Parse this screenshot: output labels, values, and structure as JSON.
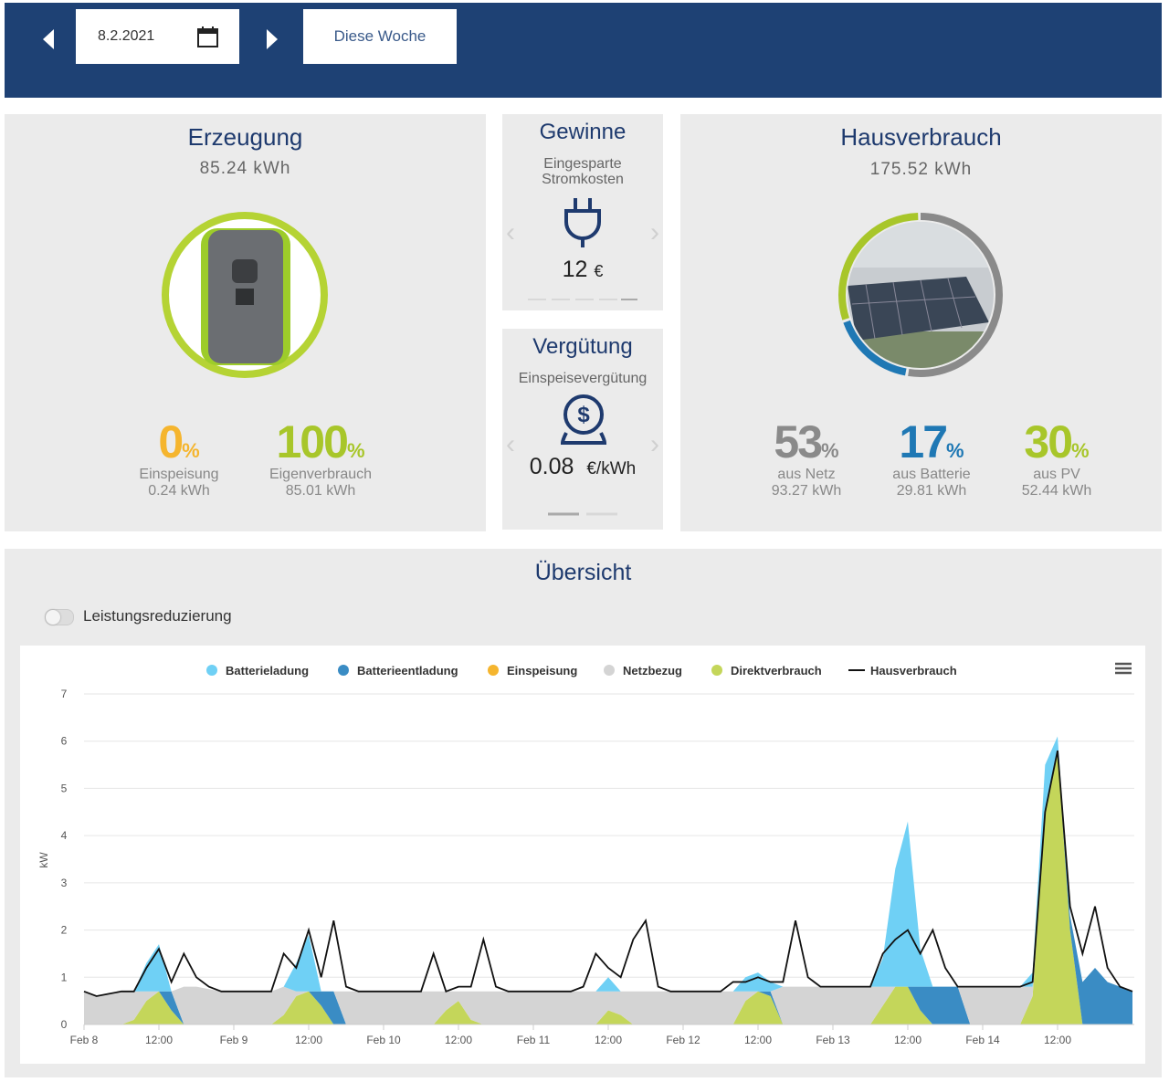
{
  "header": {
    "date": "8.2.2021",
    "week_button": "Diese Woche"
  },
  "erzeugung": {
    "title": "Erzeugung",
    "total": "85.24 kWh",
    "stats": [
      {
        "value": 0,
        "unit": "%",
        "label": "Einspeisung",
        "amount": "0.24 kWh",
        "color": "#f5b52e"
      },
      {
        "value": 100,
        "unit": "%",
        "label": "Eigenverbrauch",
        "amount": "85.01 kWh",
        "color": "#a8c62a"
      }
    ]
  },
  "gewinne": {
    "title": "Gewinne",
    "subtitle": "Eingesparte Stromkosten",
    "value": "12",
    "unit": "€"
  },
  "verguetung": {
    "title": "Vergütung",
    "subtitle": "Einspeisevergütung",
    "value": "0.08",
    "unit": "€/kWh"
  },
  "hausverbrauch": {
    "title": "Hausverbrauch",
    "total": "175.52 kWh",
    "stats": [
      {
        "value": 53,
        "unit": "%",
        "label": "aus Netz",
        "amount": "93.27 kWh",
        "color": "#8a8a8a"
      },
      {
        "value": 17,
        "unit": "%",
        "label": "aus Batterie",
        "amount": "29.81 kWh",
        "color": "#1f78b4"
      },
      {
        "value": 30,
        "unit": "%",
        "label": "aus PV",
        "amount": "52.44 kWh",
        "color": "#a8c62a"
      }
    ]
  },
  "overview": {
    "title": "Übersicht",
    "toggle_label": "Leistungsreduzierung"
  },
  "chart_data": {
    "type": "area",
    "ylabel": "kW",
    "ylim": [
      0,
      7
    ],
    "yticks": [
      0,
      1,
      2,
      3,
      4,
      5,
      6,
      7
    ],
    "grid": true,
    "xlim": [
      0,
      168
    ],
    "xticks": [
      {
        "value": 0,
        "label": "Feb 8"
      },
      {
        "value": 12,
        "label": "12:00"
      },
      {
        "value": 24,
        "label": "Feb 9"
      },
      {
        "value": 36,
        "label": "12:00"
      },
      {
        "value": 48,
        "label": "Feb 10"
      },
      {
        "value": 60,
        "label": "12:00"
      },
      {
        "value": 72,
        "label": "Feb 11"
      },
      {
        "value": 84,
        "label": "12:00"
      },
      {
        "value": 96,
        "label": "Feb 12"
      },
      {
        "value": 108,
        "label": "12:00"
      },
      {
        "value": 120,
        "label": "Feb 13"
      },
      {
        "value": 132,
        "label": "12:00"
      },
      {
        "value": 144,
        "label": "Feb 14"
      },
      {
        "value": 156,
        "label": "12:00"
      }
    ],
    "x": [
      0,
      2,
      4,
      6,
      8,
      10,
      12,
      14,
      16,
      18,
      20,
      22,
      24,
      26,
      28,
      30,
      32,
      34,
      36,
      38,
      40,
      42,
      44,
      46,
      48,
      50,
      52,
      54,
      56,
      58,
      60,
      62,
      64,
      66,
      68,
      70,
      72,
      74,
      76,
      78,
      80,
      82,
      84,
      86,
      88,
      90,
      92,
      94,
      96,
      98,
      100,
      102,
      104,
      106,
      108,
      110,
      112,
      114,
      116,
      118,
      120,
      122,
      124,
      126,
      128,
      130,
      132,
      134,
      136,
      138,
      140,
      142,
      144,
      146,
      148,
      150,
      152,
      154,
      156,
      158,
      160,
      162,
      164,
      166,
      168
    ],
    "series": [
      {
        "name": "Batterieladung",
        "color": "#6fd0f5",
        "values": [
          0,
          0,
          0,
          0,
          0,
          0.6,
          1.0,
          0,
          0,
          0,
          0,
          0,
          0,
          0,
          0,
          0,
          0,
          0.6,
          1.2,
          0,
          0,
          0,
          0,
          0,
          0,
          0,
          0,
          0,
          0,
          0,
          0,
          0,
          0,
          0,
          0,
          0,
          0,
          0,
          0,
          0,
          0,
          0,
          0.3,
          0,
          0,
          0,
          0,
          0,
          0,
          0,
          0,
          0,
          0,
          0.3,
          0.4,
          0.2,
          0,
          0,
          0,
          0,
          0,
          0,
          0,
          0,
          0.6,
          2.5,
          3.5,
          0.8,
          0,
          0,
          0,
          0,
          0,
          0,
          0,
          0,
          0.3,
          1.0,
          0.3,
          0,
          0,
          0,
          0,
          0,
          0
        ]
      },
      {
        "name": "Batterieentladung",
        "color": "#3a8cc4",
        "values": [
          0,
          0,
          0,
          0,
          0,
          0,
          0,
          0.4,
          0,
          0,
          0,
          0,
          0,
          0,
          0,
          0,
          0,
          0,
          0,
          0.3,
          0.7,
          0,
          0,
          0,
          0,
          0,
          0,
          0,
          0,
          0,
          0,
          0,
          0,
          0,
          0,
          0,
          0,
          0,
          0,
          0,
          0,
          0,
          0,
          0,
          0,
          0,
          0,
          0,
          0,
          0,
          0,
          0,
          0,
          0,
          0,
          0.1,
          0,
          0,
          0,
          0,
          0,
          0,
          0,
          0,
          0,
          0,
          0,
          0.5,
          0.8,
          0.8,
          0.8,
          0,
          0,
          0,
          0,
          0,
          0,
          0,
          0,
          0.3,
          0.9,
          1.2,
          0.9,
          0.8,
          0.7
        ]
      },
      {
        "name": "Einspeisung",
        "color": "#f5b52e",
        "values": [
          0,
          0,
          0,
          0,
          0,
          0,
          0,
          0,
          0,
          0,
          0,
          0,
          0,
          0,
          0,
          0,
          0,
          0,
          0,
          0,
          0,
          0,
          0,
          0,
          0,
          0,
          0,
          0,
          0,
          0,
          0,
          0,
          0,
          0,
          0,
          0,
          0,
          0,
          0,
          0,
          0,
          0,
          0,
          0,
          0,
          0,
          0,
          0,
          0,
          0,
          0,
          0,
          0,
          0,
          0,
          0,
          0,
          0,
          0,
          0,
          0,
          0,
          0,
          0,
          0,
          0,
          0,
          0,
          0,
          0,
          0,
          0,
          0,
          0,
          0,
          0,
          0,
          0,
          0,
          0,
          0,
          0,
          0,
          0,
          0
        ]
      },
      {
        "name": "Netzbezug",
        "color": "#d4d4d4",
        "values": [
          0.7,
          0.6,
          0.65,
          0.7,
          0.6,
          0.2,
          0,
          0,
          0.8,
          0.8,
          0.75,
          0.7,
          0.7,
          0.7,
          0.7,
          0.7,
          0.6,
          0.1,
          0,
          0,
          0,
          0.7,
          0.7,
          0.7,
          0.7,
          0.7,
          0.7,
          0.7,
          0.7,
          0.4,
          0.2,
          0.6,
          0.7,
          0.7,
          0.7,
          0.7,
          0.7,
          0.7,
          0.7,
          0.7,
          0.7,
          0.7,
          0.4,
          0.5,
          0.7,
          0.7,
          0.7,
          0.7,
          0.7,
          0.7,
          0.7,
          0.7,
          0.7,
          0.2,
          0,
          0,
          0.8,
          0.8,
          0.8,
          0.8,
          0.8,
          0.8,
          0.8,
          0.8,
          0.4,
          0,
          0,
          0,
          0,
          0,
          0,
          0.8,
          0.8,
          0.8,
          0.8,
          0.8,
          0.2,
          0,
          0,
          0,
          0,
          0,
          0,
          0,
          0
        ]
      },
      {
        "name": "Direktverbrauch",
        "color": "#c4d65a",
        "values": [
          0,
          0,
          0,
          0,
          0.1,
          0.5,
          0.7,
          0.3,
          0,
          0,
          0,
          0,
          0,
          0,
          0,
          0,
          0.2,
          0.6,
          0.7,
          0.4,
          0,
          0,
          0,
          0,
          0,
          0,
          0,
          0,
          0,
          0.3,
          0.5,
          0.1,
          0,
          0,
          0,
          0,
          0,
          0,
          0,
          0,
          0,
          0,
          0.3,
          0.2,
          0,
          0,
          0,
          0,
          0,
          0,
          0,
          0,
          0,
          0.5,
          0.7,
          0.6,
          0,
          0,
          0,
          0,
          0,
          0,
          0,
          0,
          0.4,
          0.8,
          0.8,
          0.3,
          0,
          0,
          0,
          0,
          0,
          0,
          0,
          0,
          0.6,
          4.5,
          5.8,
          2.0,
          0,
          0,
          0,
          0,
          0
        ]
      },
      {
        "name": "Hausverbrauch",
        "color": "#111111",
        "type": "line",
        "values": [
          0.7,
          0.6,
          0.65,
          0.7,
          0.7,
          1.2,
          1.6,
          0.9,
          1.5,
          1.0,
          0.8,
          0.7,
          0.7,
          0.7,
          0.7,
          0.7,
          1.5,
          1.2,
          2.0,
          1.0,
          2.2,
          0.8,
          0.7,
          0.7,
          0.7,
          0.7,
          0.7,
          0.7,
          1.5,
          0.7,
          0.8,
          0.8,
          1.8,
          0.8,
          0.7,
          0.7,
          0.7,
          0.7,
          0.7,
          0.7,
          0.8,
          1.5,
          1.2,
          1.0,
          1.8,
          2.2,
          0.8,
          0.7,
          0.7,
          0.7,
          0.7,
          0.7,
          0.9,
          0.9,
          1.0,
          0.9,
          0.9,
          2.2,
          1.0,
          0.8,
          0.8,
          0.8,
          0.8,
          0.8,
          1.5,
          1.8,
          2.0,
          1.5,
          2.0,
          1.2,
          0.8,
          0.8,
          0.8,
          0.8,
          0.8,
          0.8,
          0.9,
          4.5,
          5.8,
          2.5,
          1.5,
          2.5,
          1.2,
          0.8,
          0.7
        ]
      }
    ]
  }
}
